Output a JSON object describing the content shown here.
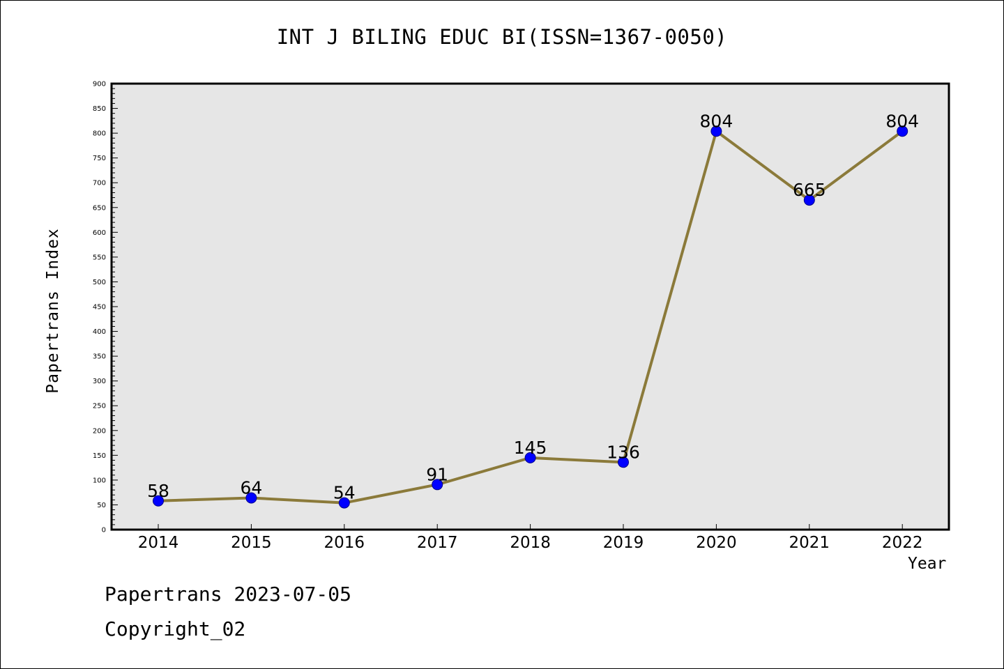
{
  "footer": {
    "line1": "Papertrans 2023-07-05",
    "line2": "Copyright_02"
  },
  "chart_data": {
    "type": "line",
    "title": "INT J BILING EDUC BI(ISSN=1367-0050)",
    "xlabel": "Year",
    "ylabel": "Papertrans Index",
    "x": [
      "2014",
      "2015",
      "2016",
      "2017",
      "2018",
      "2019",
      "2020",
      "2021",
      "2022"
    ],
    "series": [
      {
        "values": [
          58,
          64,
          54,
          91,
          145,
          136,
          804,
          665,
          804
        ]
      }
    ],
    "data_labels": [
      "58",
      "64",
      "54",
      "91",
      "145",
      "136",
      "804",
      "665",
      "804"
    ],
    "ylim": [
      0,
      900
    ],
    "y_major_step": 50,
    "y_minor_step": 10,
    "grid": false,
    "colors": {
      "line": "#8b7a3a",
      "marker_fill": "#0000ff",
      "marker_stroke": "#00008b",
      "plot_background": "#e6e6e6"
    }
  }
}
